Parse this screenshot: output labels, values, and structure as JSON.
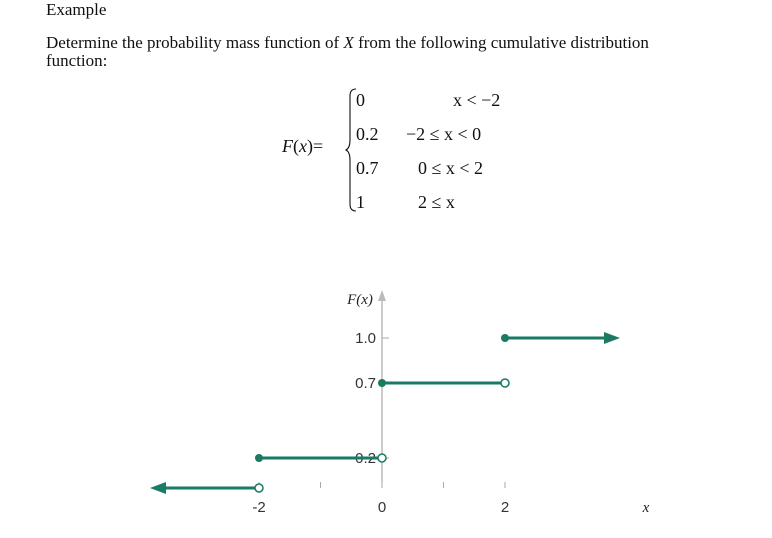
{
  "heading": "Example",
  "prompt": {
    "before": "Determine the probability mass function of ",
    "variable": "X",
    "after": " from the following cumulative distribution function:"
  },
  "formula": {
    "lhs_func": "F",
    "lhs_arg": "x",
    "cases": [
      {
        "value": "0",
        "condition": "x < −2"
      },
      {
        "value": "0.2",
        "condition": "−2 ≤ x < 0"
      },
      {
        "value": "0.7",
        "condition": "0 ≤ x < 2"
      },
      {
        "value": "1",
        "condition": "2 ≤ x"
      }
    ]
  },
  "chart_data": {
    "type": "line",
    "ylabel": "F(x)",
    "xlabel": "x",
    "x_ticks": [
      "-2",
      "0",
      "2"
    ],
    "y_ticks": [
      "0.2",
      "0.7",
      "1.0"
    ],
    "steps": [
      {
        "x_start": null,
        "x_end": -2,
        "y": 0,
        "left": "arrow",
        "right": "open"
      },
      {
        "x_start": -2,
        "x_end": 0,
        "y": 0.2,
        "left": "closed",
        "right": "open"
      },
      {
        "x_start": 0,
        "x_end": 2,
        "y": 0.7,
        "left": "closed",
        "right": "open"
      },
      {
        "x_start": 2,
        "x_end": null,
        "y": 1.0,
        "left": "closed",
        "right": "arrow"
      }
    ],
    "colors": {
      "step": "#1a7a63",
      "axis": "#999999"
    }
  }
}
